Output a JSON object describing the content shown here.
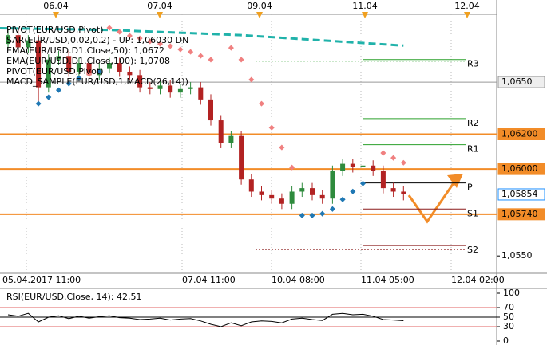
{
  "chart_data": {
    "type": "candlestick",
    "legend": [
      "PIVOT(EUR/USD,Pivot)",
      "SAR(EUR/USD,0.02,0.2) - UP: 1,06030 DN",
      "EMA(EUR/USD.D1.Close,50): 1,0672",
      "EMA(EUR/USD.D1.Close,100): 1,0708",
      "PIVOT(EUR/USD,Pivot)",
      "MACD_SAMPLE(EUR/USD,1,MACD(26,14))"
    ],
    "date_labels": [
      "06.04",
      "07.04",
      "09.04",
      "11.04",
      "12.04"
    ],
    "time_labels": [
      "05.04.2017 11:00",
      "07.04 11:00",
      "10.04 08:00",
      "11.04 05:00",
      "12.04 02:00"
    ],
    "ylim": [
      1.054,
      1.0689
    ],
    "yticks": [
      {
        "value": 1.055,
        "label": "1,0550"
      }
    ],
    "open": [
      1.0672,
      1.0677,
      1.067,
      1.0674,
      1.0647,
      1.0663,
      1.0665,
      1.0656,
      1.0661,
      1.0654,
      1.0658,
      1.0661,
      1.0656,
      1.0654,
      1.0647,
      1.0646,
      1.0648,
      1.0644,
      1.0646,
      1.0647,
      1.064,
      1.0628,
      1.0615,
      1.0619,
      1.0594,
      1.0587,
      1.0585,
      1.0583,
      1.058,
      1.0587,
      1.0589,
      1.0585,
      1.0583,
      1.0599,
      1.0603,
      1.0601,
      1.0602,
      1.0599,
      1.0589,
      1.0587
    ],
    "high": [
      1.068,
      1.068,
      1.0677,
      1.0677,
      1.0666,
      1.0668,
      1.0668,
      1.0664,
      1.0664,
      1.0661,
      1.0664,
      1.0664,
      1.0659,
      1.0657,
      1.065,
      1.0651,
      1.0651,
      1.0649,
      1.065,
      1.065,
      1.0643,
      1.0631,
      1.0622,
      1.0622,
      1.0597,
      1.059,
      1.0588,
      1.0586,
      1.059,
      1.0592,
      1.0592,
      1.0588,
      1.0602,
      1.0606,
      1.0606,
      1.0605,
      1.0605,
      1.0602,
      1.0592,
      1.059
    ],
    "low": [
      1.0669,
      1.0667,
      1.0667,
      1.0638,
      1.0644,
      1.066,
      1.0653,
      1.0653,
      1.0651,
      1.0651,
      1.0655,
      1.0653,
      1.0651,
      1.0644,
      1.0643,
      1.0643,
      1.0641,
      1.0641,
      1.0643,
      1.0637,
      1.0625,
      1.0612,
      1.0612,
      1.0591,
      1.0584,
      1.0582,
      1.058,
      1.0577,
      1.0577,
      1.0584,
      1.0582,
      1.058,
      1.058,
      1.0596,
      1.0598,
      1.0598,
      1.0596,
      1.0586,
      1.0584,
      1.0582
    ],
    "close": [
      1.0677,
      1.067,
      1.0674,
      1.0647,
      1.0663,
      1.0665,
      1.0656,
      1.0661,
      1.0654,
      1.0658,
      1.0661,
      1.0656,
      1.0654,
      1.0647,
      1.0646,
      1.0648,
      1.0644,
      1.0646,
      1.0647,
      1.064,
      1.0628,
      1.0615,
      1.0619,
      1.0594,
      1.0587,
      1.0585,
      1.0583,
      1.058,
      1.0587,
      1.0589,
      1.0585,
      1.0583,
      1.0599,
      1.0603,
      1.0601,
      1.0602,
      1.0599,
      1.0589,
      1.0587,
      1.05854
    ],
    "up_color": "#2e8b3d",
    "down_color": "#b22222",
    "sar": [
      null,
      null,
      null,
      1.06376,
      1.06413,
      1.06454,
      1.06491,
      1.06523,
      1.06546,
      1.0656,
      1.06812,
      1.06789,
      1.06766,
      1.06752,
      1.06734,
      1.0672,
      1.06707,
      1.06688,
      1.06674,
      1.06651,
      1.06629,
      null,
      1.06697,
      1.06629,
      1.06514,
      1.06376,
      1.06238,
      1.06124,
      1.06009,
      1.05733,
      1.05733,
      1.05743,
      1.0577,
      1.05825,
      1.05871,
      1.05917,
      null,
      1.06092,
      1.06064,
      1.06036
    ],
    "sar_above_color": "#f08080",
    "sar_below_color": "#1f78b4",
    "ema": {
      "x": [
        0,
        10,
        23,
        39
      ],
      "values": [
        1.0681,
        1.068,
        1.0677,
        1.0671
      ],
      "color": "#20b2aa"
    },
    "levels": [
      {
        "value": 1.065,
        "label": "1,0650",
        "color": "#999999"
      },
      {
        "value": 1.062,
        "label": "1,06200",
        "color": "#f28c28"
      },
      {
        "value": 1.06,
        "label": "1,06000",
        "color": "#f28c28"
      },
      {
        "value": 1.0574,
        "label": "1,05740",
        "color": "#f28c28"
      }
    ],
    "last_price": {
      "value": 1.05854,
      "label": "1,05854",
      "color": "#1e90ff"
    },
    "pivots": [
      {
        "label": "R3",
        "value": 1.0663,
        "color": "#2ca02c",
        "dotted": true
      },
      {
        "label": "R2",
        "value": 1.0629,
        "color": "#2ca02c",
        "dotted": false
      },
      {
        "label": "R1",
        "value": 1.0614,
        "color": "#2ca02c",
        "dotted": false
      },
      {
        "label": "P",
        "value": 1.0592,
        "color": "#000000",
        "dotted": false
      },
      {
        "label": "S1",
        "value": 1.0577,
        "color": "#8b1a1a",
        "dotted": false
      },
      {
        "label": "S2",
        "value": 1.0556,
        "color": "#8b1a1a",
        "dotted": true
      }
    ],
    "rsi": {
      "title": "RSI(EUR/USD.Close, 14): 42,51",
      "ylim": [
        0,
        100
      ],
      "yticks": [
        0,
        30,
        50,
        70,
        100
      ],
      "levels": [
        70,
        50,
        30
      ],
      "level_colors": [
        "#e06060",
        "#000000",
        "#e06060"
      ],
      "values": [
        55,
        52,
        58,
        40,
        50,
        53,
        47,
        52,
        48,
        51,
        53,
        49,
        48,
        45,
        46,
        48,
        44,
        46,
        47,
        42,
        35,
        30,
        38,
        32,
        40,
        42,
        41,
        38,
        46,
        48,
        45,
        43,
        56,
        58,
        55,
        56,
        52,
        45,
        44,
        42.51
      ]
    }
  }
}
